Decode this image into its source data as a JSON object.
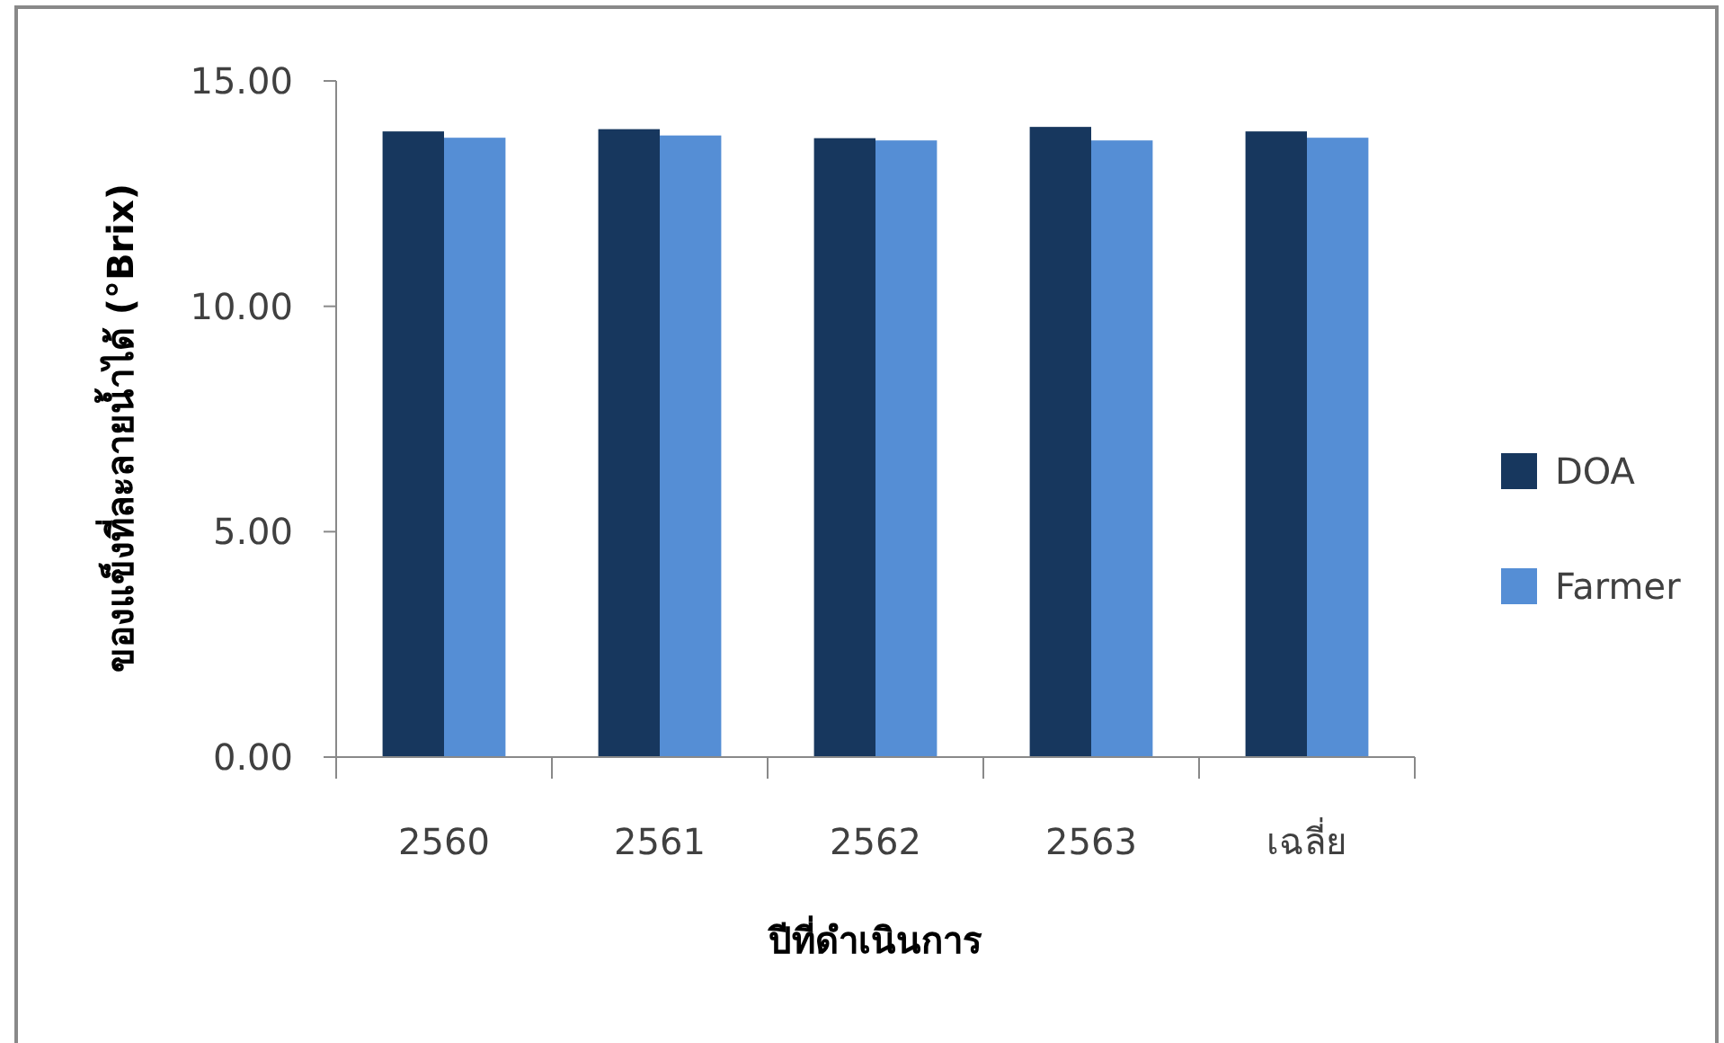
{
  "chart_data": {
    "type": "bar",
    "xlabel": "ปีที่ดำเนินการ",
    "ylabel": "ของแข็งที่ละลายน้ำได้ (°Brix)",
    "categories": [
      "2560",
      "2561",
      "2562",
      "2563",
      "เฉลี่ย"
    ],
    "series": [
      {
        "name": "DOA",
        "color": "#17375e",
        "values": [
          13.88,
          13.93,
          13.73,
          13.98,
          13.88
        ]
      },
      {
        "name": "Farmer",
        "color": "#558ed5",
        "values": [
          13.74,
          13.79,
          13.68,
          13.68,
          13.74
        ]
      }
    ],
    "ylim": [
      0,
      15
    ],
    "yticks": [
      {
        "value": 0,
        "label": "0.00"
      },
      {
        "value": 5,
        "label": "5.00"
      },
      {
        "value": 10,
        "label": "10.00"
      },
      {
        "value": 15,
        "label": "15.00"
      }
    ],
    "grid": false,
    "legend": "right"
  }
}
